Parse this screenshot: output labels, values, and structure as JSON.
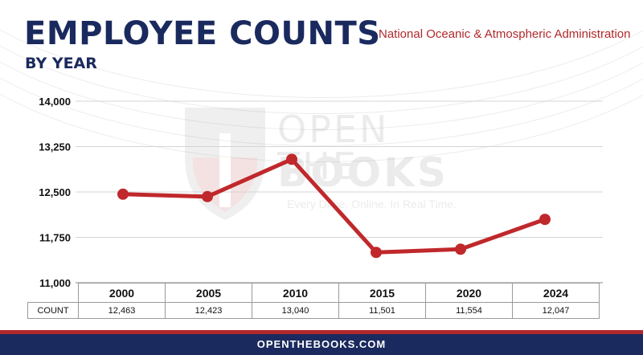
{
  "header": {
    "title": "EMPLOYEE COUNTS",
    "subtitle": "BY YEAR",
    "agency": "National Oceanic & Atmospheric Administration"
  },
  "watermark": {
    "line1": "OPEN THE",
    "line2": "BOOKS",
    "tagline": "Every Dime. Online. In Real Time."
  },
  "table": {
    "row_label": "COUNT"
  },
  "footer": {
    "text": "OPENTHEBOOKS.COM"
  },
  "colors": {
    "navy": "#1a2a5e",
    "red": "#b0282b",
    "line": "#c0282b"
  },
  "chart_data": {
    "type": "line",
    "categories": [
      "2000",
      "2005",
      "2010",
      "2015",
      "2020",
      "2024"
    ],
    "values": [
      12463,
      12423,
      13040,
      11501,
      11554,
      12047
    ],
    "value_labels": [
      "12,463",
      "12,423",
      "13,040",
      "11,501",
      "11,554",
      "12,047"
    ],
    "ylim": [
      11000,
      14000
    ],
    "yticks": [
      11000,
      11750,
      12500,
      13250,
      14000
    ],
    "ytick_labels": [
      "11,000",
      "11,750",
      "12,500",
      "13,250",
      "14,000"
    ],
    "grid": true,
    "legend": "none"
  }
}
